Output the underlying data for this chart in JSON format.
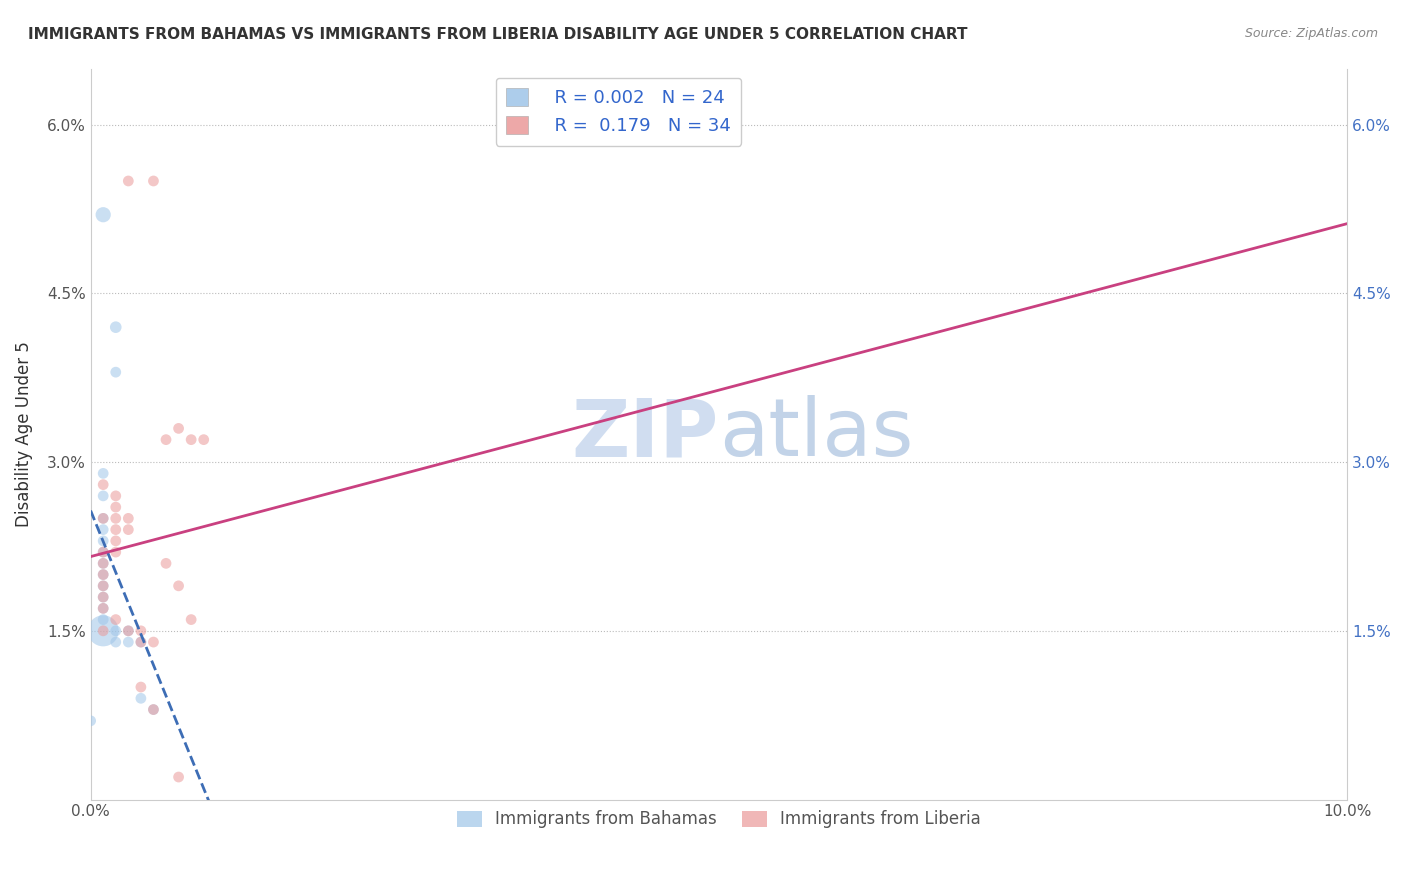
{
  "title": "IMMIGRANTS FROM BAHAMAS VS IMMIGRANTS FROM LIBERIA DISABILITY AGE UNDER 5 CORRELATION CHART",
  "source": "Source: ZipAtlas.com",
  "ylabel": "Disability Age Under 5",
  "xlim": [
    0.0,
    0.1
  ],
  "ylim": [
    0.0,
    0.065
  ],
  "yticks": [
    0.0,
    0.015,
    0.03,
    0.045,
    0.06
  ],
  "ytick_labels_left": [
    "",
    "1.5%",
    "3.0%",
    "4.5%",
    "6.0%"
  ],
  "ytick_labels_right": [
    "",
    "1.5%",
    "3.0%",
    "4.5%",
    "6.0%"
  ],
  "legend_r1": "R = 0.002",
  "legend_n1": "N = 24",
  "legend_r2": "R =  0.179",
  "legend_n2": "N = 34",
  "color_bahamas": "#9fc5e8",
  "color_liberia": "#ea9999",
  "trendline_bahamas_color": "#3d6db5",
  "trendline_liberia_color": "#c94080",
  "watermark_color": "#c8d8ee",
  "bahamas_points": [
    [
      0.001,
      0.052
    ],
    [
      0.002,
      0.042
    ],
    [
      0.002,
      0.038
    ],
    [
      0.001,
      0.029
    ],
    [
      0.001,
      0.027
    ],
    [
      0.001,
      0.025
    ],
    [
      0.001,
      0.024
    ],
    [
      0.001,
      0.023
    ],
    [
      0.001,
      0.022
    ],
    [
      0.001,
      0.021
    ],
    [
      0.001,
      0.02
    ],
    [
      0.001,
      0.019
    ],
    [
      0.001,
      0.018
    ],
    [
      0.001,
      0.017
    ],
    [
      0.001,
      0.016
    ],
    [
      0.001,
      0.015
    ],
    [
      0.002,
      0.015
    ],
    [
      0.002,
      0.014
    ],
    [
      0.003,
      0.015
    ],
    [
      0.003,
      0.014
    ],
    [
      0.004,
      0.014
    ],
    [
      0.004,
      0.009
    ],
    [
      0.005,
      0.008
    ],
    [
      0.0,
      0.007
    ]
  ],
  "bahamas_sizes": [
    120,
    70,
    60,
    60,
    60,
    60,
    60,
    60,
    60,
    60,
    60,
    60,
    60,
    60,
    60,
    500,
    60,
    60,
    60,
    60,
    60,
    60,
    60,
    60
  ],
  "liberia_points": [
    [
      0.003,
      0.055
    ],
    [
      0.005,
      0.055
    ],
    [
      0.001,
      0.028
    ],
    [
      0.002,
      0.027
    ],
    [
      0.002,
      0.026
    ],
    [
      0.001,
      0.025
    ],
    [
      0.002,
      0.025
    ],
    [
      0.003,
      0.025
    ],
    [
      0.003,
      0.024
    ],
    [
      0.002,
      0.024
    ],
    [
      0.002,
      0.023
    ],
    [
      0.001,
      0.022
    ],
    [
      0.002,
      0.022
    ],
    [
      0.001,
      0.021
    ],
    [
      0.001,
      0.02
    ],
    [
      0.001,
      0.019
    ],
    [
      0.001,
      0.018
    ],
    [
      0.001,
      0.017
    ],
    [
      0.002,
      0.016
    ],
    [
      0.001,
      0.015
    ],
    [
      0.003,
      0.015
    ],
    [
      0.004,
      0.015
    ],
    [
      0.004,
      0.014
    ],
    [
      0.005,
      0.014
    ],
    [
      0.004,
      0.01
    ],
    [
      0.005,
      0.008
    ],
    [
      0.006,
      0.032
    ],
    [
      0.006,
      0.021
    ],
    [
      0.007,
      0.033
    ],
    [
      0.007,
      0.019
    ],
    [
      0.007,
      0.002
    ],
    [
      0.008,
      0.032
    ],
    [
      0.008,
      0.016
    ],
    [
      0.009,
      0.032
    ]
  ],
  "liberia_sizes": [
    60,
    60,
    60,
    60,
    60,
    60,
    60,
    60,
    60,
    60,
    60,
    60,
    60,
    60,
    60,
    60,
    60,
    60,
    60,
    60,
    60,
    60,
    60,
    60,
    60,
    60,
    60,
    60,
    60,
    60,
    60,
    60,
    60,
    60
  ]
}
